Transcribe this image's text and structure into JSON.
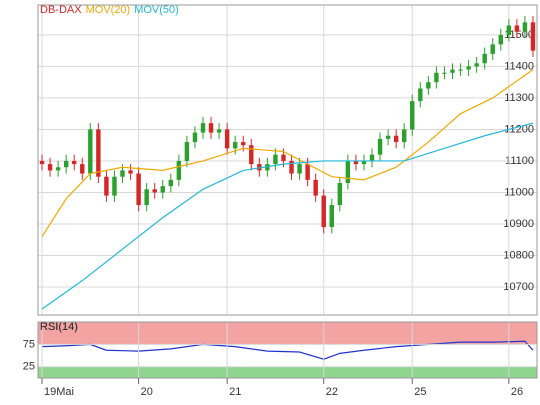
{
  "chart_data": [
    {
      "type": "candlestick",
      "title": "DB-DAX",
      "up_color": "#2ca02c",
      "down_color": "#d62728",
      "x": [
        0,
        1,
        2,
        3,
        4,
        5,
        6,
        7,
        8,
        9,
        10,
        11,
        12,
        13,
        14,
        15,
        16,
        17,
        18,
        19,
        20,
        21,
        22,
        23,
        24,
        25,
        26,
        27,
        28,
        29,
        30,
        31,
        32,
        33,
        34,
        35,
        36,
        37,
        38,
        39,
        40,
        41,
        42,
        43,
        44,
        45,
        46,
        47,
        48,
        49,
        50,
        51,
        52,
        53,
        54,
        55,
        56,
        57,
        58,
        59,
        60,
        61
      ],
      "open": [
        11100,
        11090,
        11070,
        11080,
        11100,
        11090,
        11060,
        11200,
        11050,
        10990,
        11050,
        11070,
        11060,
        10960,
        11010,
        11000,
        11020,
        11040,
        11100,
        11160,
        11190,
        11220,
        11190,
        11200,
        11140,
        11160,
        11150,
        11090,
        11070,
        11090,
        11120,
        11100,
        11060,
        11090,
        11040,
        10990,
        10890,
        10960,
        11030,
        11100,
        11090,
        11100,
        11120,
        11170,
        11180,
        11160,
        11200,
        11290,
        11330,
        11350,
        11380,
        11380,
        11390,
        11390,
        11400,
        11410,
        11440,
        11470,
        11500,
        11530,
        11510,
        11540
      ],
      "high": [
        11120,
        11110,
        11100,
        11120,
        11120,
        11110,
        11220,
        11220,
        11070,
        11070,
        11090,
        11090,
        11080,
        11030,
        11030,
        11040,
        11060,
        11120,
        11180,
        11210,
        11240,
        11240,
        11220,
        11220,
        11180,
        11180,
        11170,
        11110,
        11110,
        11140,
        11140,
        11120,
        11110,
        11110,
        11060,
        11010,
        10980,
        11050,
        11120,
        11120,
        11120,
        11140,
        11190,
        11200,
        11200,
        11220,
        11310,
        11350,
        11370,
        11400,
        11400,
        11410,
        11410,
        11420,
        11430,
        11460,
        11490,
        11520,
        11550,
        11550,
        11560,
        11560
      ],
      "low": [
        11070,
        11050,
        11050,
        11060,
        11070,
        11040,
        11040,
        11030,
        10970,
        10970,
        11030,
        11040,
        10940,
        10940,
        10980,
        10980,
        11000,
        11020,
        11080,
        11140,
        11170,
        11170,
        11170,
        11120,
        11120,
        11130,
        11070,
        11050,
        11050,
        11070,
        11080,
        11040,
        11040,
        11020,
        10970,
        10870,
        10870,
        10940,
        11010,
        11070,
        11070,
        11080,
        11100,
        11150,
        11140,
        11140,
        11180,
        11270,
        11310,
        11330,
        11360,
        11360,
        11370,
        11370,
        11380,
        11390,
        11420,
        11450,
        11480,
        11490,
        11490,
        11430
      ],
      "close": [
        11090,
        11070,
        11080,
        11100,
        11090,
        11060,
        11200,
        11050,
        10990,
        11050,
        11070,
        11060,
        10960,
        11010,
        11000,
        11020,
        11040,
        11100,
        11160,
        11190,
        11220,
        11190,
        11200,
        11140,
        11160,
        11150,
        11090,
        11070,
        11090,
        11120,
        11100,
        11060,
        11090,
        11040,
        10990,
        10890,
        10960,
        11030,
        11100,
        11090,
        11100,
        11120,
        11170,
        11180,
        11160,
        11200,
        11290,
        11330,
        11350,
        11380,
        11380,
        11390,
        11390,
        11400,
        11410,
        11440,
        11470,
        11500,
        11530,
        11510,
        11540,
        11450
      ],
      "series": [
        {
          "name": "MOV(20)",
          "color": "#f0a800",
          "x": [
            0,
            3,
            6,
            10,
            15,
            20,
            25,
            30,
            33,
            36,
            40,
            44,
            48,
            52,
            56,
            61
          ],
          "values": [
            10860,
            10980,
            11060,
            11080,
            11070,
            11100,
            11140,
            11130,
            11090,
            11050,
            11040,
            11080,
            11160,
            11250,
            11300,
            11390
          ]
        },
        {
          "name": "MOV(50)",
          "color": "#22b8d8",
          "x": [
            0,
            5,
            10,
            15,
            20,
            25,
            30,
            35,
            40,
            45,
            50,
            55,
            61
          ],
          "values": [
            10630,
            10720,
            10820,
            10920,
            11010,
            11070,
            11090,
            11100,
            11100,
            11100,
            11140,
            11180,
            11220
          ]
        }
      ],
      "xlim": [
        -0.5,
        61.5
      ],
      "ylim": [
        10611,
        11595
      ],
      "yticks": [
        10700,
        10800,
        10900,
        11000,
        11100,
        11200,
        11300,
        11400,
        11500
      ],
      "xticks": [
        {
          "value": 0,
          "label": "19Mai"
        },
        {
          "value": 12,
          "label": "20"
        },
        {
          "value": 23,
          "label": "21"
        },
        {
          "value": 35,
          "label": "22"
        },
        {
          "value": 46,
          "label": "25"
        },
        {
          "value": 58,
          "label": "26"
        }
      ],
      "grid": true
    },
    {
      "type": "line",
      "title": "RSI(14)",
      "series": [
        {
          "name": "RSI(14)",
          "color": "#2233cc",
          "x": [
            0,
            3,
            6,
            8,
            12,
            16,
            20,
            24,
            28,
            32,
            35,
            37,
            40,
            44,
            48,
            52,
            56,
            60,
            61
          ],
          "values": [
            70,
            72,
            75,
            62,
            60,
            65,
            75,
            70,
            60,
            58,
            42,
            55,
            62,
            70,
            75,
            80,
            80,
            82,
            62
          ]
        }
      ],
      "xlim": [
        -0.5,
        61.5
      ],
      "ylim": [
        0,
        125
      ],
      "yticks": [
        25,
        75
      ],
      "overbought_color": "#f4a3a3",
      "oversold_color": "#8fd48f",
      "grid": true
    }
  ]
}
